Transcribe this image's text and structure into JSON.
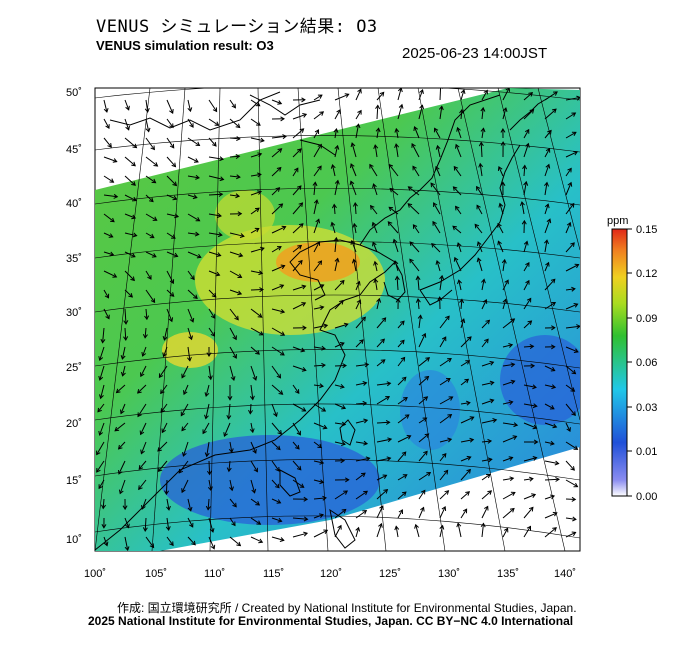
{
  "header": {
    "title_jp": "VENUS シミュレーション結果: O3",
    "title_en": "VENUS simulation result: O3",
    "timestamp": "2025-06-23 14:00JST"
  },
  "map": {
    "projection": "lambert-conformal",
    "variable": "O3",
    "lat_labels": [
      "50˚",
      "45˚",
      "40˚",
      "35˚",
      "30˚",
      "25˚",
      "20˚",
      "15˚",
      "10˚"
    ],
    "lon_labels": [
      "100˚",
      "105˚",
      "110˚",
      "115˚",
      "120˚",
      "125˚",
      "130˚",
      "135˚",
      "140˚"
    ],
    "overlay": "wind-vectors"
  },
  "colorbar": {
    "unit": "ppm",
    "tick_labels": [
      "0.15",
      "0.12",
      "0.09",
      "0.06",
      "0.03",
      "0.01",
      "0.00"
    ],
    "colors": [
      "#e8401e",
      "#f5a623",
      "#e5e020",
      "#34c12e",
      "#1fc7e6",
      "#1f4fd8",
      "#ffffff"
    ]
  },
  "footer": {
    "credit_line1": "作成: 国立環境研究所 / Created by National Institute for Environmental Studies, Japan.",
    "credit_line2": "2025 National Institute for Environmental Studies, Japan. CC BY−NC 4.0 International"
  }
}
